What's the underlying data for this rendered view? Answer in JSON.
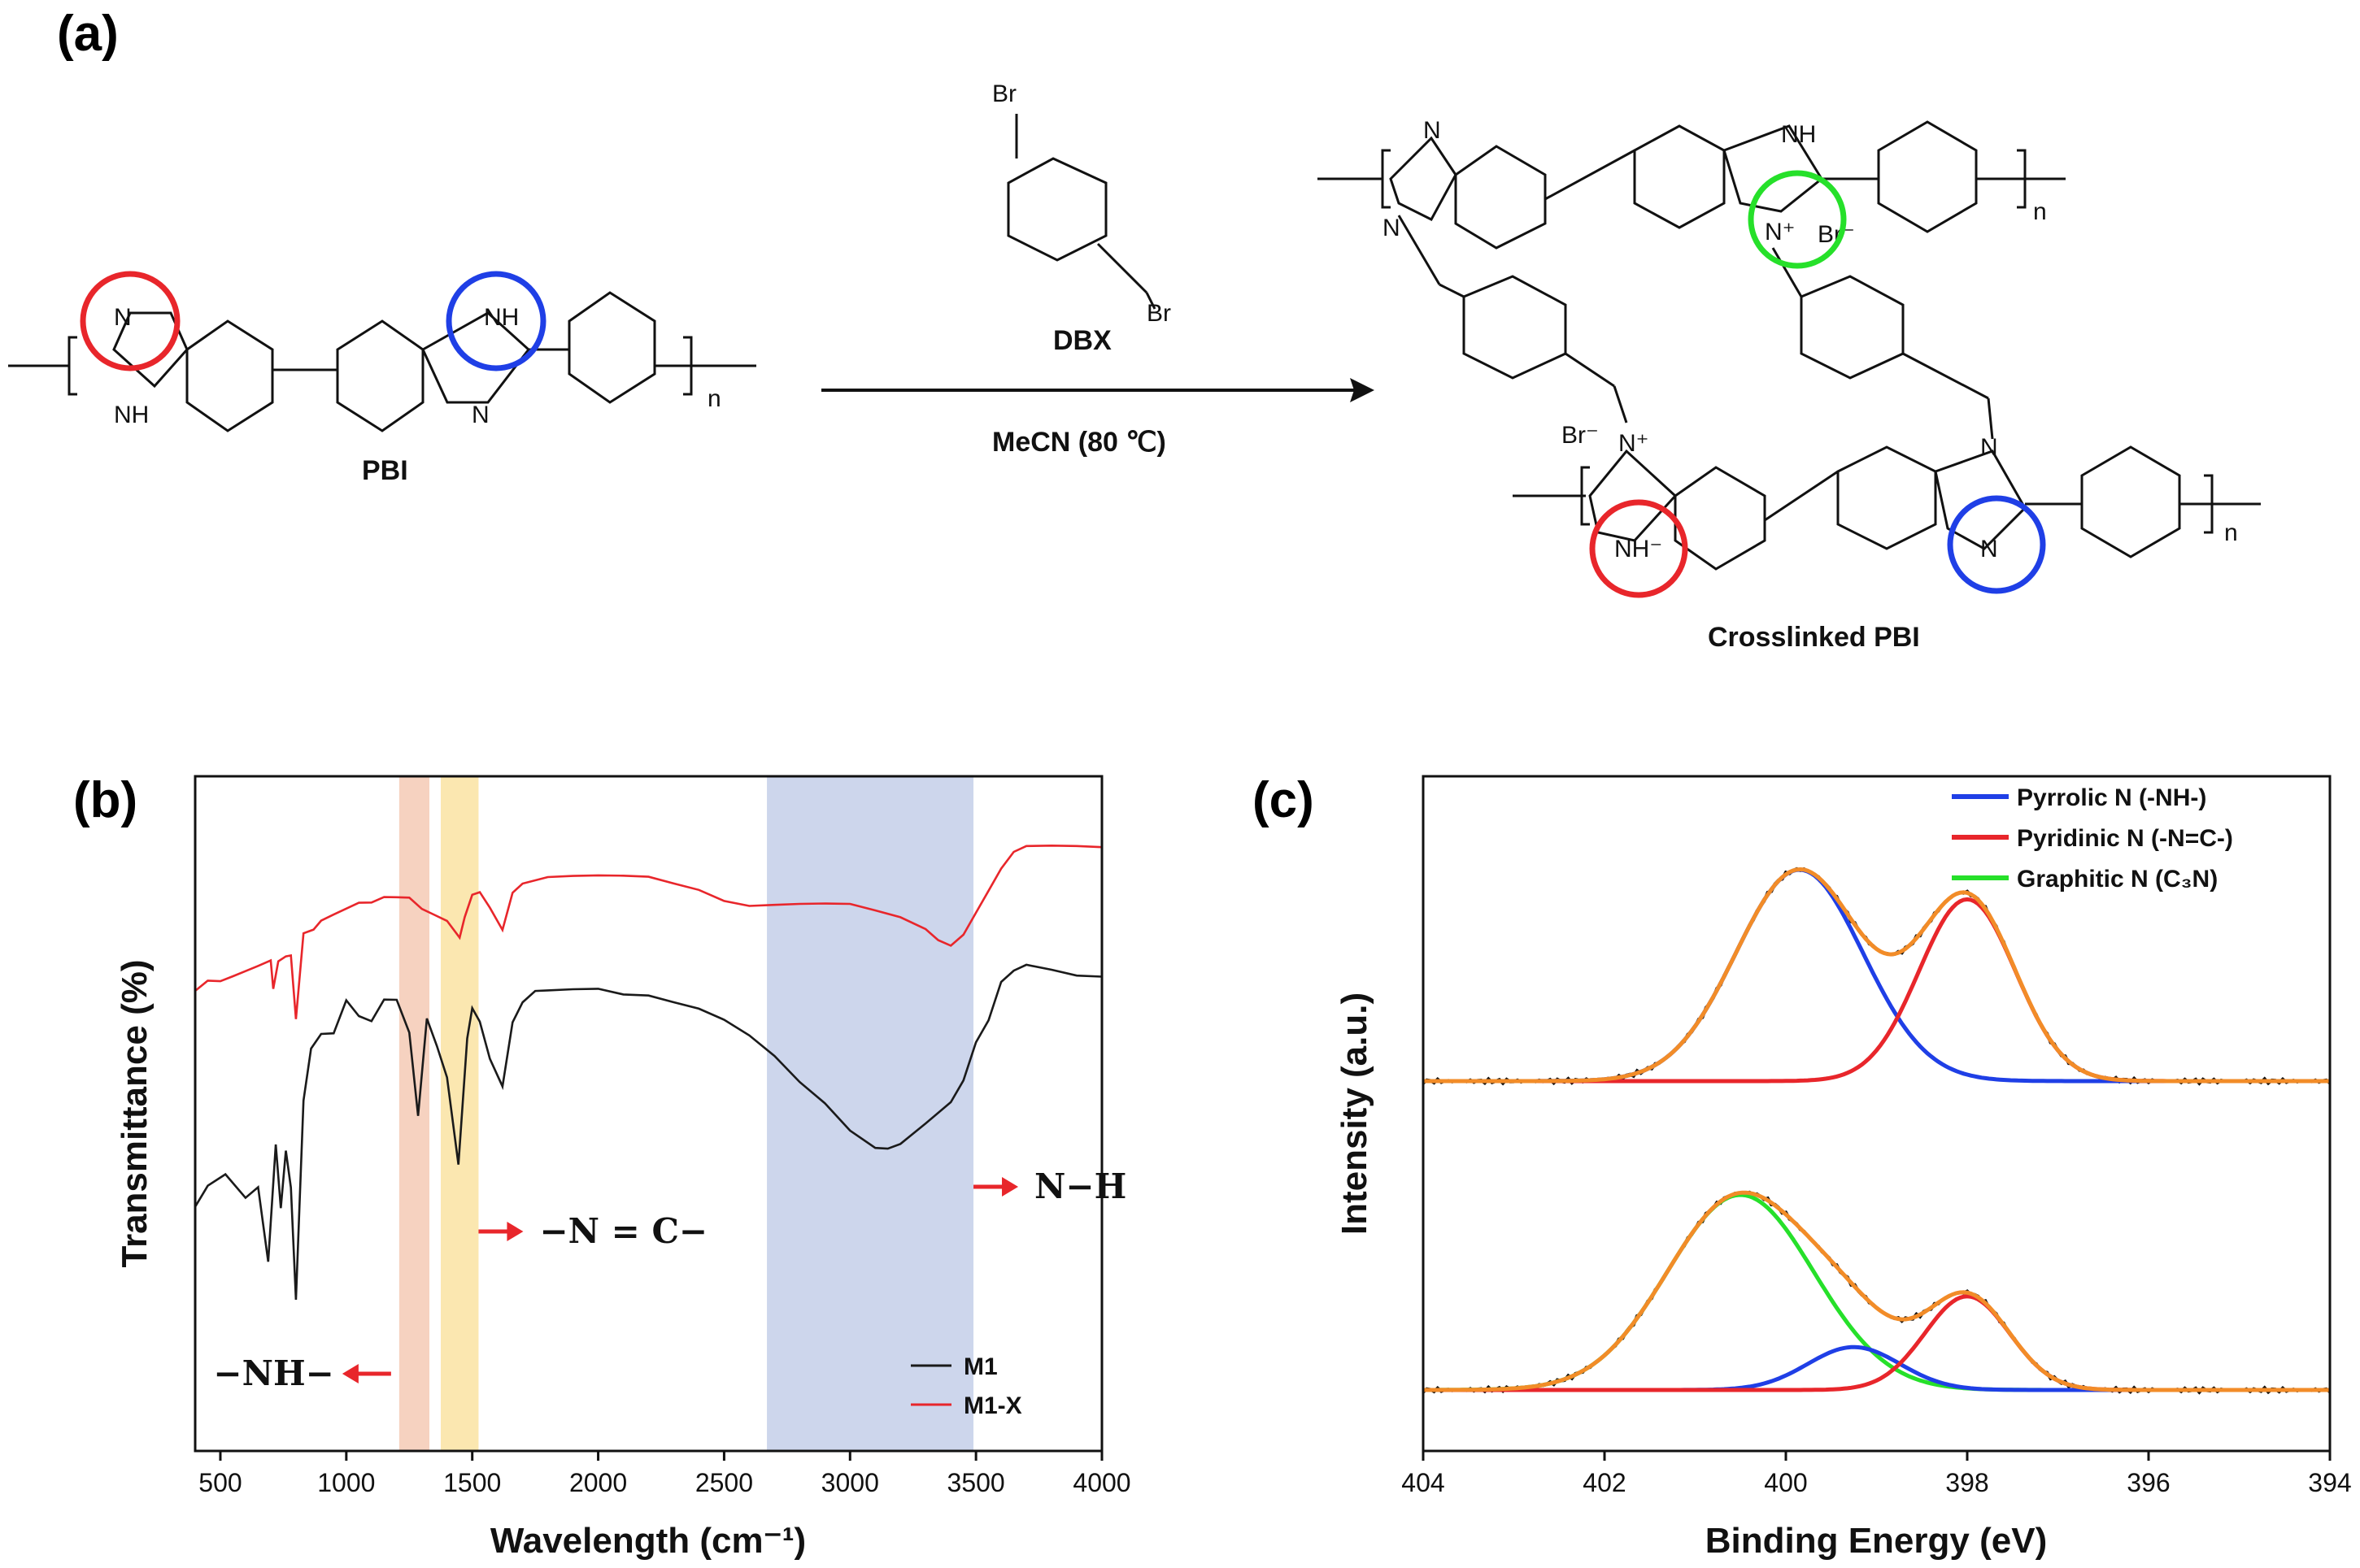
{
  "panel_a": {
    "label": "(a)",
    "reactant_label": "PBI",
    "reagent_label": "DBX",
    "conditions": "MeCN (80 ℃)",
    "product_label": "Crosslinked PBI",
    "atoms": {
      "N": "N",
      "NH": "NH",
      "N_plus": "N⁺",
      "Br_minus": "Br⁻",
      "Br": "Br",
      "n": "n",
      "NH_minus": "NH⁻"
    }
  },
  "colors": {
    "red": "#e8262b",
    "blue": "#1f3fe6",
    "green": "#26e02a",
    "orange": "#f28c28",
    "ftir_m1": "#1a1a1a",
    "ftir_m1x": "#e8262b",
    "band_orange": "#f6d2c0",
    "band_yellow": "#fbe7b0",
    "band_blue": "#cdd6ec"
  },
  "chart_data": [
    {
      "panel": "(b)",
      "type": "line",
      "xlabel": "Wavelength (cm⁻¹)",
      "ylabel": "Transmittance (%)",
      "xlim": [
        400,
        4000
      ],
      "xticks": [
        500,
        1000,
        1500,
        2000,
        2500,
        3000,
        3500,
        4000
      ],
      "yticks_shown": false,
      "bands": [
        {
          "from": 1210,
          "to": 1330,
          "color": "orange"
        },
        {
          "from": 1375,
          "to": 1525,
          "color": "yellow"
        },
        {
          "from": 2670,
          "to": 3490,
          "color": "blue"
        }
      ],
      "annotations": [
        {
          "text": "−NH−",
          "x": 1210,
          "arrow": "left"
        },
        {
          "text": "−N = C−",
          "x": 1525,
          "arrow": "right"
        },
        {
          "text": "N−H",
          "x": 3490,
          "arrow": "right"
        }
      ],
      "legend": {
        "position": "bottom-right"
      },
      "series": [
        {
          "name": "M1",
          "color": "ftir_m1",
          "x": [
            400,
            450,
            520,
            600,
            650,
            690,
            720,
            740,
            760,
            780,
            800,
            830,
            860,
            900,
            950,
            1000,
            1050,
            1100,
            1150,
            1200,
            1250,
            1285,
            1320,
            1360,
            1400,
            1445,
            1480,
            1500,
            1530,
            1570,
            1620,
            1660,
            1700,
            1750,
            1800,
            1900,
            2000,
            2100,
            2200,
            2300,
            2400,
            2500,
            2600,
            2700,
            2800,
            2900,
            3000,
            3100,
            3150,
            3200,
            3300,
            3400,
            3450,
            3500,
            3550,
            3600,
            3650,
            3700,
            3800,
            3900,
            4000
          ],
          "y": [
            40,
            44,
            46,
            42,
            44,
            30,
            52,
            40,
            50,
            44,
            23,
            60,
            69,
            72,
            72,
            78,
            75,
            74,
            78,
            78,
            72,
            57,
            75,
            70,
            64,
            48,
            72,
            77,
            75,
            68,
            63,
            74,
            78,
            80,
            80,
            80,
            80,
            79,
            79,
            78,
            77,
            75,
            72,
            68,
            63,
            59,
            54,
            51,
            51,
            52,
            56,
            60,
            64,
            71,
            75,
            82,
            84,
            85,
            84,
            83,
            83
          ]
        },
        {
          "name": "M1-X",
          "color": "ftir_m1x",
          "x": [
            400,
            450,
            500,
            550,
            600,
            650,
            700,
            710,
            730,
            760,
            780,
            800,
            830,
            870,
            900,
            950,
            1000,
            1050,
            1100,
            1150,
            1200,
            1250,
            1300,
            1350,
            1400,
            1450,
            1470,
            1500,
            1530,
            1570,
            1620,
            1660,
            1700,
            1800,
            1900,
            2000,
            2100,
            2200,
            2300,
            2400,
            2500,
            2600,
            2700,
            2800,
            2900,
            3000,
            3100,
            3200,
            3300,
            3350,
            3400,
            3450,
            3500,
            3550,
            3600,
            3650,
            3700,
            3800,
            3900,
            4000
          ],
          "y": [
            80,
            82,
            82,
            83,
            84,
            85,
            86,
            80,
            86,
            86,
            87,
            75,
            91,
            92,
            93,
            94,
            95,
            96,
            96,
            97,
            97,
            97,
            95,
            94,
            93,
            90,
            94,
            98,
            99,
            96,
            92,
            98,
            100,
            101,
            101,
            101,
            101,
            101,
            100,
            99,
            97,
            96,
            96,
            96,
            96,
            96,
            95,
            94,
            92,
            90,
            89,
            91,
            95,
            99,
            103,
            106,
            107,
            107,
            107,
            107
          ]
        }
      ]
    },
    {
      "panel": "(c)",
      "type": "line",
      "xlabel": "Binding Energy (eV)",
      "ylabel": "Intensity (a.u.)",
      "xlim": [
        404,
        394
      ],
      "xticks": [
        404,
        402,
        400,
        398,
        396,
        394
      ],
      "yticks_shown": false,
      "legend": {
        "position": "top-right",
        "entries": [
          {
            "label": "Pyrrolic N (-NH-)",
            "color": "blue"
          },
          {
            "label": "Pyridinic N (-N=C-)",
            "color": "red"
          },
          {
            "label": "Graphitic N (C₃N)",
            "color": "green"
          }
        ]
      },
      "spectra": [
        {
          "position": "top",
          "baseline": 0,
          "components": [
            {
              "name": "Pyrrolic N (-NH-)",
              "color": "blue",
              "center": 399.85,
              "fwhm": 1.65,
              "height": 100
            },
            {
              "name": "Pyridinic N (-N=C-)",
              "color": "red",
              "center": 398.0,
              "fwhm": 1.25,
              "height": 86
            }
          ]
        },
        {
          "position": "bottom",
          "baseline": 0,
          "components": [
            {
              "name": "Graphitic N (C₃N)",
              "color": "green",
              "center": 400.5,
              "fwhm": 1.9,
              "height": 100
            },
            {
              "name": "Pyrrolic N (-NH-)",
              "color": "blue",
              "center": 399.25,
              "fwhm": 1.2,
              "height": 22
            },
            {
              "name": "Pyridinic N (-N=C-)",
              "color": "red",
              "center": 398.0,
              "fwhm": 1.1,
              "height": 48
            }
          ]
        }
      ]
    }
  ]
}
